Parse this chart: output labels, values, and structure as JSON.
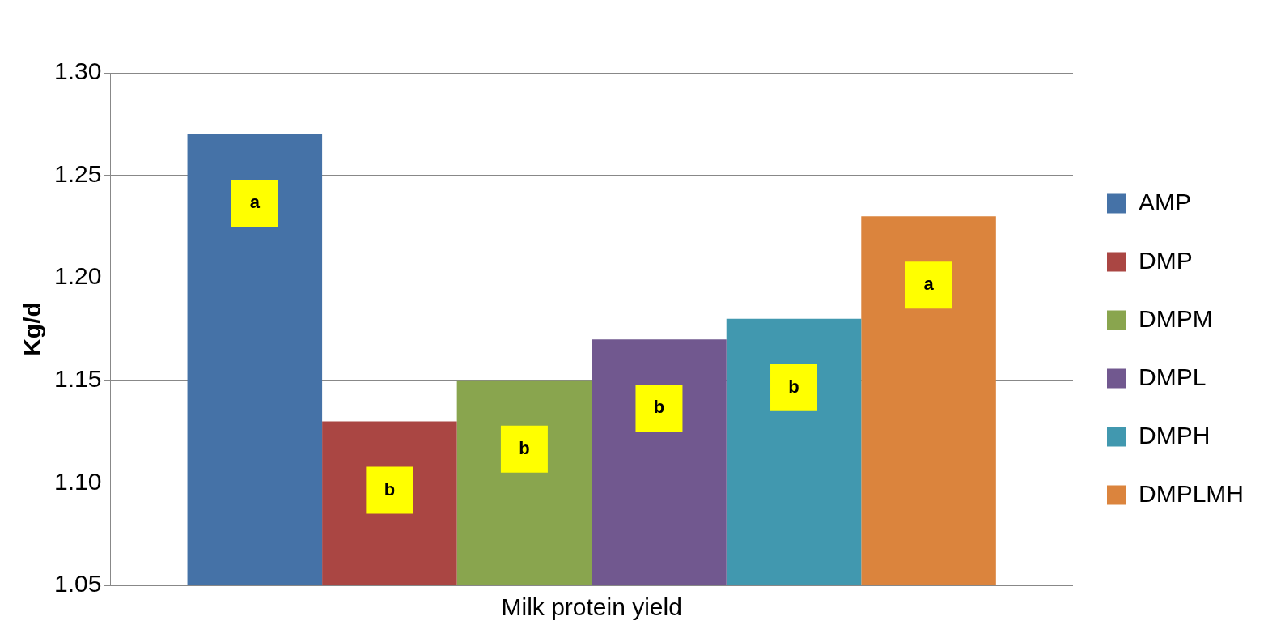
{
  "chart_data": {
    "type": "bar",
    "categories": [
      "Milk protein yield"
    ],
    "series": [
      {
        "name": "AMP",
        "color": "#4572a7",
        "values": [
          1.27
        ],
        "value_labels": [
          "a"
        ]
      },
      {
        "name": "DMP",
        "color": "#aa4643",
        "values": [
          1.13
        ],
        "value_labels": [
          "b"
        ]
      },
      {
        "name": "DMPM",
        "color": "#89a54e",
        "values": [
          1.15
        ],
        "value_labels": [
          "b"
        ]
      },
      {
        "name": "DMPL",
        "color": "#71588f",
        "values": [
          1.17
        ],
        "value_labels": [
          "b"
        ]
      },
      {
        "name": "DMPH",
        "color": "#4198af",
        "values": [
          1.18
        ],
        "value_labels": [
          "b"
        ]
      },
      {
        "name": "DMPLMH",
        "color": "#db843d",
        "values": [
          1.23
        ],
        "value_labels": [
          "a"
        ]
      }
    ],
    "ylabel": "Kg/d",
    "ylim": [
      1.05,
      1.3
    ],
    "yticks": [
      {
        "value": 1.05,
        "label": "1.05"
      },
      {
        "value": 1.1,
        "label": "1.10"
      },
      {
        "value": 1.15,
        "label": "1.15"
      },
      {
        "value": 1.2,
        "label": "1.20"
      },
      {
        "value": 1.25,
        "label": "1.25"
      },
      {
        "value": 1.3,
        "label": "1.30"
      }
    ],
    "grid": "y",
    "legend": "right"
  }
}
